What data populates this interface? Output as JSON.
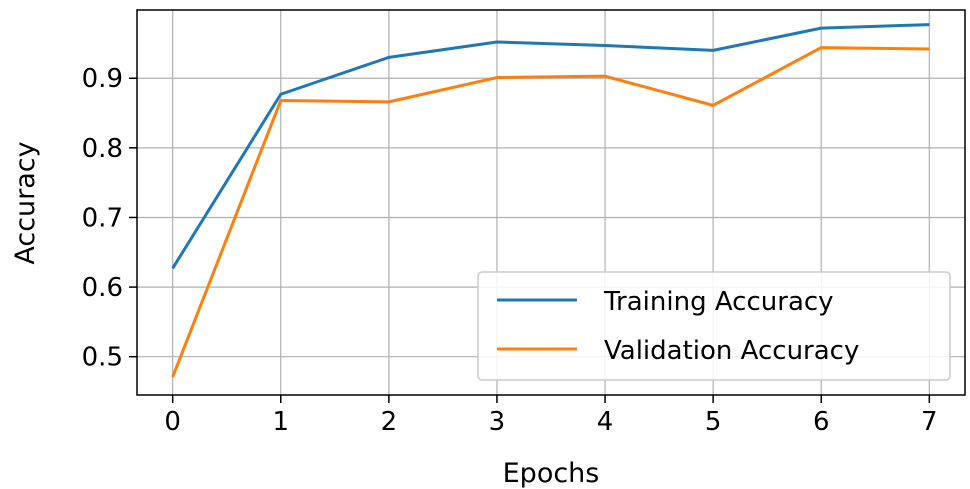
{
  "chart_data": {
    "type": "line",
    "title": "",
    "xlabel": "Epochs",
    "ylabel": "Accuracy",
    "x": [
      0,
      1,
      2,
      3,
      4,
      5,
      6,
      7
    ],
    "xlim": [
      -0.33,
      7.33
    ],
    "ylim": [
      0.445,
      0.998
    ],
    "xticks": [
      0,
      1,
      2,
      3,
      4,
      5,
      6,
      7
    ],
    "xtick_labels": [
      "0",
      "1",
      "2",
      "3",
      "4",
      "5",
      "6",
      "7"
    ],
    "yticks": [
      0.5,
      0.6,
      0.7,
      0.8,
      0.9
    ],
    "ytick_labels": [
      "0.5",
      "0.6",
      "0.7",
      "0.8",
      "0.9"
    ],
    "grid": true,
    "legend_position": "lower-right",
    "series": [
      {
        "name": "Training Accuracy",
        "color": "#1f77b4",
        "values": [
          0.627,
          0.877,
          0.93,
          0.952,
          0.947,
          0.94,
          0.972,
          0.977
        ]
      },
      {
        "name": "Validation Accuracy",
        "color": "#ff7f0e",
        "values": [
          0.471,
          0.868,
          0.866,
          0.901,
          0.903,
          0.861,
          0.944,
          0.942
        ]
      }
    ]
  }
}
